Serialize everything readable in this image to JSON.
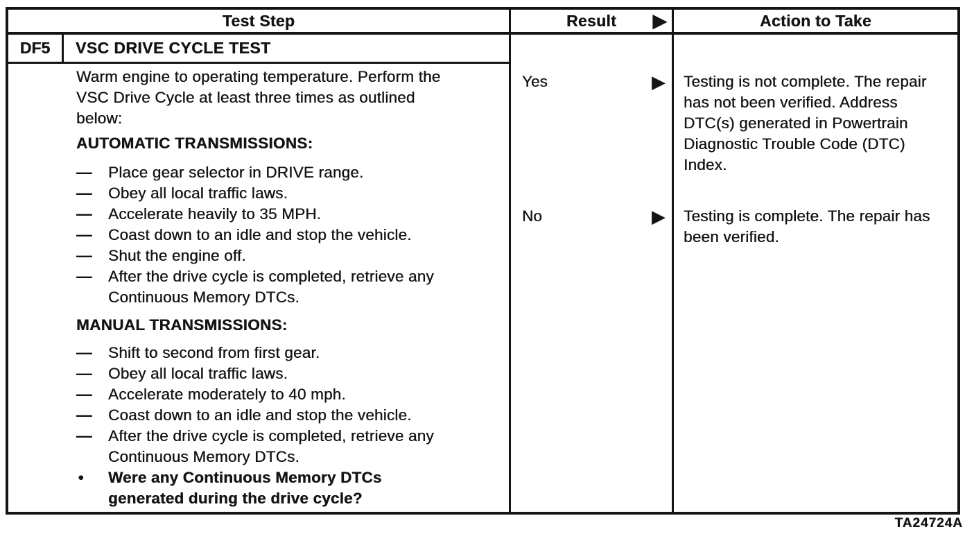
{
  "colors": {
    "ink": "#141414",
    "paper": "#ffffff"
  },
  "icons": {
    "arrow": "▶",
    "dash": "—",
    "bullet": "●"
  },
  "table": {
    "header": {
      "test_step": "Test Step",
      "result": "Result",
      "action": "Action to Take"
    },
    "step": {
      "id": "DF5",
      "title": "VSC DRIVE CYCLE TEST"
    },
    "test_step": {
      "intro": "Warm engine to operating temperature. Perform the VSC Drive Cycle at least three times as outlined below:",
      "automatic_heading": "AUTOMATIC TRANSMISSIONS:",
      "automatic_items": [
        "Place gear selector in DRIVE range.",
        "Obey all local traffic laws.",
        "Accelerate heavily to 35 MPH.",
        "Coast down to an idle and stop the vehicle.",
        "Shut the engine off.",
        "After the drive cycle is completed, retrieve any Continuous Memory DTCs."
      ],
      "manual_heading": "MANUAL TRANSMISSIONS:",
      "manual_items": [
        "Shift to second from first gear.",
        "Obey all local traffic laws.",
        "Accelerate moderately to 40 mph.",
        "Coast down to an idle and stop the vehicle.",
        "After the drive cycle is completed, retrieve any Continuous Memory DTCs."
      ],
      "question": "Were any Continuous Memory DTCs generated during the drive cycle?"
    },
    "results": [
      {
        "label": "Yes",
        "action": "Testing is not complete. The repair has not been verified. Address DTC(s) generated in Powertrain Diagnostic Trouble Code (DTC) Index."
      },
      {
        "label": "No",
        "action": "Testing is complete. The repair has been verified."
      }
    ]
  },
  "footer": {
    "figure_code": "TA24724A"
  }
}
